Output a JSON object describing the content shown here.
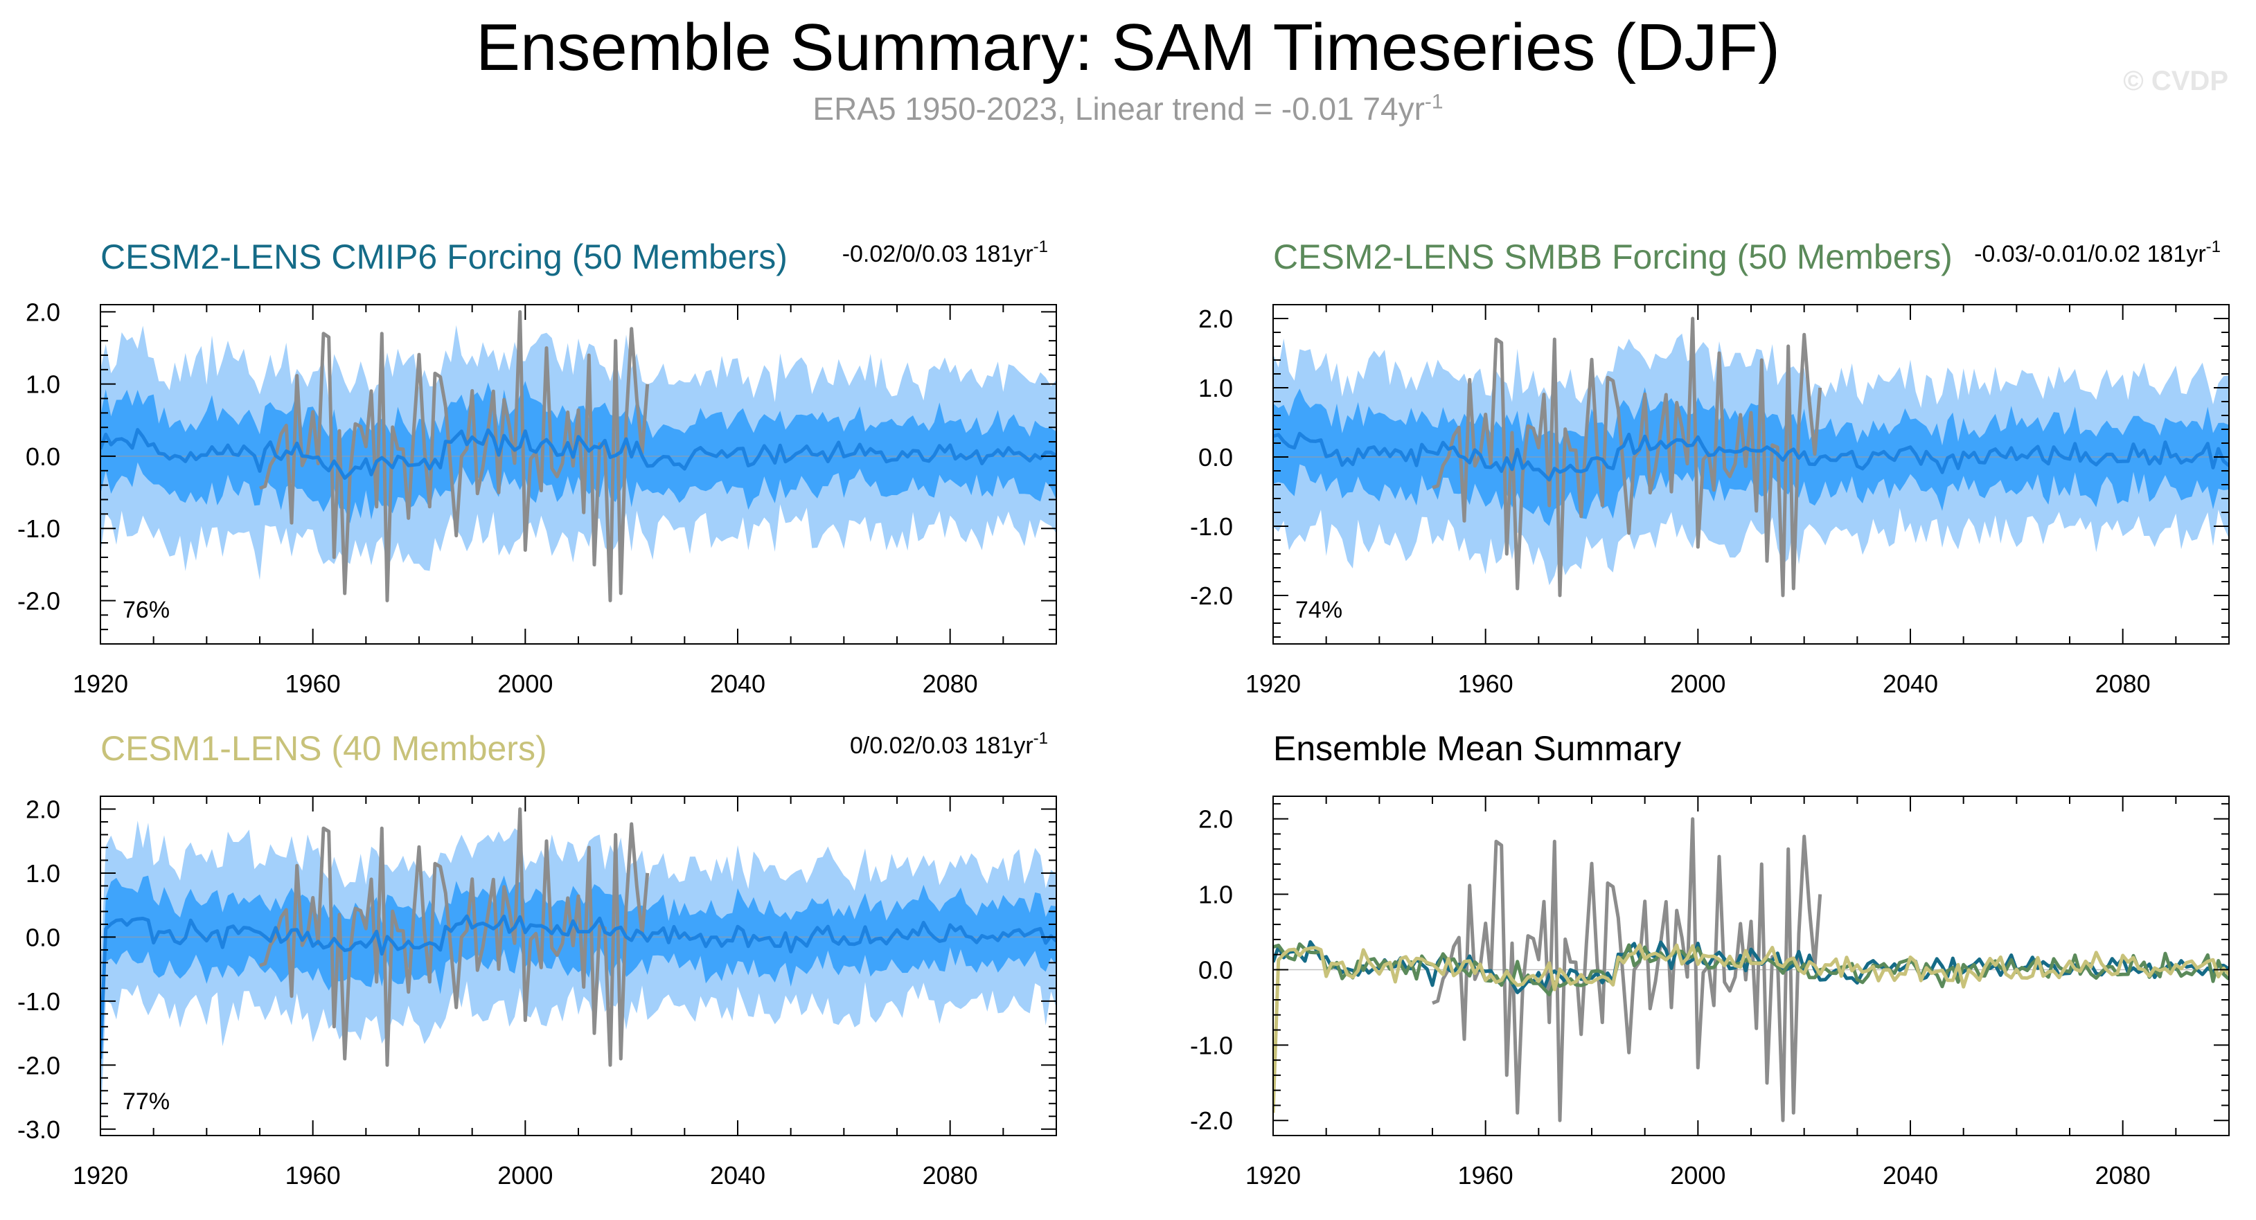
{
  "title": "Ensemble Summary: SAM Timeseries (DJF)",
  "subtitle": {
    "main": "ERA5 1950-2023, Linear trend = -0.01 74yr",
    "exponent": "-1"
  },
  "watermark": "© CVDP",
  "colors": {
    "outer_band": "#a3d0fb",
    "inner_band": "#3fa4fb",
    "ens_mean": "#1d82e0",
    "obs": "#8c8c8c",
    "cesm2_cmip6": "#156b87",
    "cesm2_smbb": "#5b8a5a",
    "cesm1": "#c8c27a"
  },
  "chart_data": [
    {
      "type": "line",
      "id": "cmip6",
      "title": "CESM2-LENS CMIP6 Forcing (50 Members)",
      "title_color": "#156b87",
      "trend_text": "-0.02/0/0.03 181yr",
      "trend_exp": "-1",
      "percent": "76%",
      "x": [
        1920,
        2100
      ],
      "xticks": [
        1920,
        1960,
        2000,
        2040,
        2080
      ],
      "xtick_labels": [
        "1920",
        "1960",
        "2000",
        "2040",
        "2080"
      ],
      "ylim": [
        -2.6,
        2.1
      ],
      "yticks": [
        2.0,
        1.0,
        0.0,
        -1.0,
        -2.0
      ],
      "ytick_labels": [
        "2.0",
        "1.0",
        "0.0",
        "-1.0",
        "-2.0"
      ],
      "members": 50,
      "observed": {
        "name": "ERA5",
        "start": 1950,
        "end": 2023
      }
    },
    {
      "type": "line",
      "id": "smbb",
      "title": "CESM2-LENS SMBB Forcing (50 Members)",
      "title_color": "#5b8a5a",
      "trend_text": "-0.03/-0.01/0.02 181yr",
      "trend_exp": "-1",
      "percent": "74%",
      "x": [
        1920,
        2100
      ],
      "xticks": [
        1920,
        1960,
        2000,
        2040,
        2080
      ],
      "xtick_labels": [
        "1920",
        "1960",
        "2000",
        "2040",
        "2080"
      ],
      "ylim": [
        -2.7,
        2.2
      ],
      "yticks": [
        2.0,
        1.0,
        0.0,
        -1.0,
        -2.0
      ],
      "ytick_labels": [
        "2.0",
        "1.0",
        "0.0",
        "-1.0",
        "-2.0"
      ],
      "members": 50,
      "observed": {
        "name": "ERA5",
        "start": 1950,
        "end": 2023
      }
    },
    {
      "type": "line",
      "id": "cesm1",
      "title": "CESM1-LENS (40 Members)",
      "title_color": "#c8c27a",
      "trend_text": "0/0.02/0.03 181yr",
      "trend_exp": "-1",
      "percent": "77%",
      "x": [
        1920,
        2100
      ],
      "xticks": [
        1920,
        1960,
        2000,
        2040,
        2080
      ],
      "xtick_labels": [
        "1920",
        "1960",
        "2000",
        "2040",
        "2080"
      ],
      "ylim": [
        -3.1,
        2.2
      ],
      "yticks": [
        2.0,
        1.0,
        0.0,
        -1.0,
        -2.0,
        -3.0
      ],
      "ytick_labels": [
        "2.0",
        "1.0",
        "0.0",
        "-1.0",
        "-2.0",
        "-3.0"
      ],
      "members": 40,
      "observed": {
        "name": "ERA5",
        "start": 1950,
        "end": 2023
      }
    },
    {
      "type": "line",
      "id": "mean",
      "title": "Ensemble Mean Summary",
      "title_color": "#000000",
      "x": [
        1920,
        2100
      ],
      "xticks": [
        1920,
        1960,
        2000,
        2040,
        2080
      ],
      "xtick_labels": [
        "1920",
        "1960",
        "2000",
        "2040",
        "2080"
      ],
      "ylim": [
        -2.2,
        2.3
      ],
      "yticks": [
        2.0,
        1.0,
        0.0,
        -1.0,
        -2.0
      ],
      "ytick_labels": [
        "2.0",
        "1.0",
        "0.0",
        "-1.0",
        "-2.0"
      ],
      "series": [
        {
          "name": "ERA5",
          "color": "#8c8c8c"
        },
        {
          "name": "CESM2-LENS CMIP6 Forcing",
          "color": "#156b87"
        },
        {
          "name": "CESM2-LENS SMBB Forcing",
          "color": "#5b8a5a"
        },
        {
          "name": "CESM1-LENS",
          "color": "#c8c27a"
        }
      ]
    }
  ]
}
